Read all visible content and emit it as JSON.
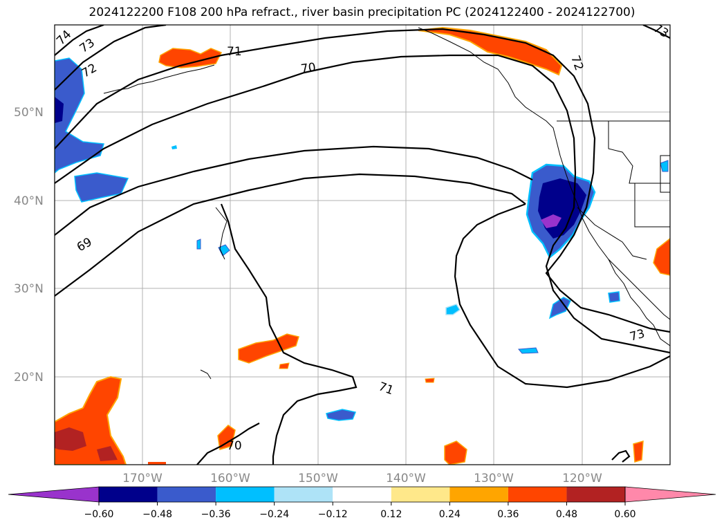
{
  "title": "2024122200 F108 200 hPa refract., river basin precipitation PC (2024122400 - 2024122700)",
  "lat_labels": [
    "50°N",
    "40°N",
    "30°N",
    "20°N"
  ],
  "lon_labels": [
    "170°W",
    "160°W",
    "150°W",
    "140°W",
    "130°W",
    "120°W"
  ],
  "contour_labels": [
    "74",
    "73",
    "72",
    "71",
    "70",
    "69",
    "70",
    "71",
    "72",
    "73",
    "73"
  ],
  "colorbar": {
    "ticks": [
      "−0.60",
      "−0.48",
      "−0.36",
      "−0.24",
      "−0.12",
      "0.12",
      "0.24",
      "0.36",
      "0.48",
      "0.60"
    ],
    "colors": [
      "#9933cc",
      "#00008b",
      "#3a5bcc",
      "#00bfff",
      "#aee3f7",
      "#ffffff",
      "#ffe88a",
      "#ffa500",
      "#ff4500",
      "#b22222",
      "#ff88aa"
    ]
  },
  "palette": {
    "neg_strong": "#00008b",
    "neg_mid": "#3a5bcc",
    "neg_light": "#00bfff",
    "neg_pale": "#aee3f7",
    "neg_extreme": "#9933cc",
    "pos_pale": "#ffe88a",
    "pos_light": "#ffa500",
    "pos_mid": "#ff4500",
    "pos_strong": "#b22222"
  }
}
